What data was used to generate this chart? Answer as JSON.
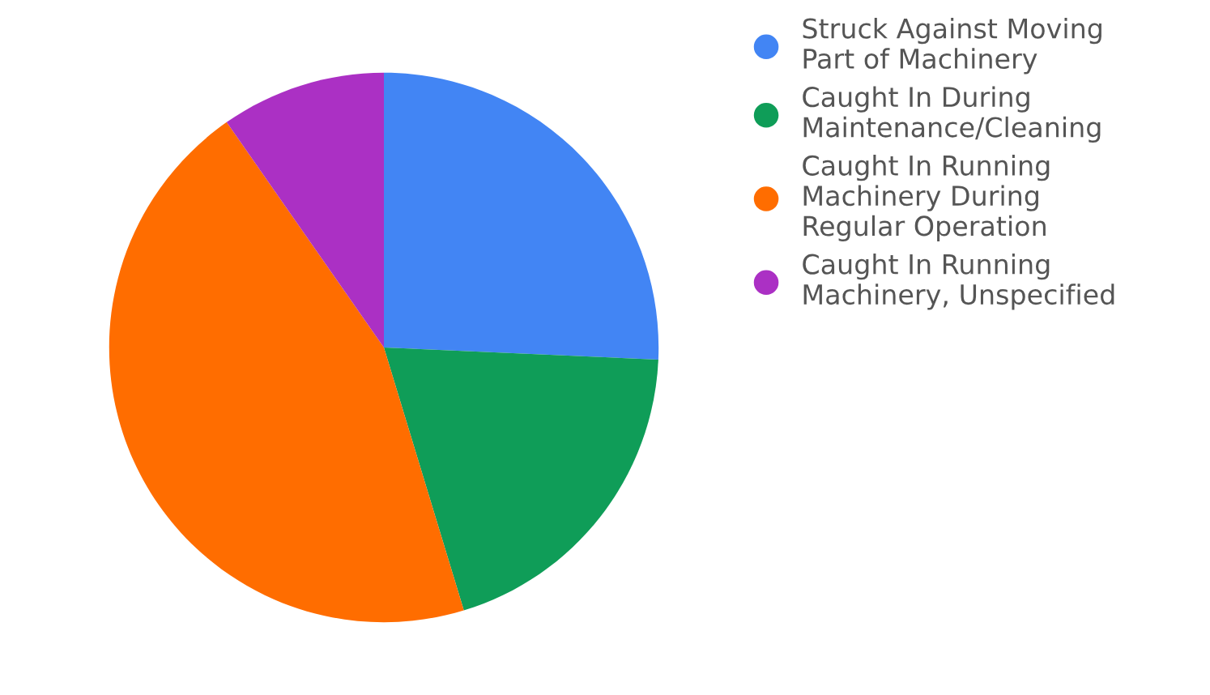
{
  "chart_data": {
    "type": "pie",
    "categories": [
      "Struck Against Moving\nPart of Machinery",
      "Caught In During\nMaintenance/Cleaning",
      "Caught In Running\nMachinery During\nRegular Operation",
      "Caught In Running\nMachinery, Unspecified"
    ],
    "values": [
      25.7,
      19.6,
      45.0,
      9.7
    ],
    "colors": [
      "#4285f4",
      "#0f9d58",
      "#ff6d00",
      "#ab30c4"
    ],
    "legend": "right",
    "marker": "circle"
  }
}
